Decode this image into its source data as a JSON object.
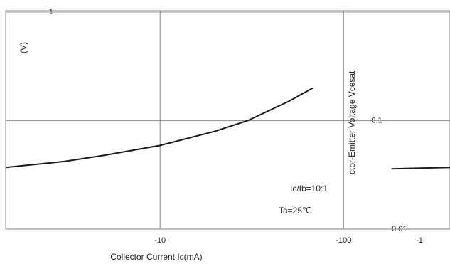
{
  "chart_data": {
    "type": "line",
    "x_label": "Collector Current  Ic(mA)",
    "y_label": "ctor-Emitter Voltage  Vcesat",
    "y_unit": "(V)",
    "annotations": [
      "Ic/Ib=10:1",
      "Ta=25℃"
    ],
    "corner_label": "-1",
    "x": [
      1.44,
      3,
      5,
      10,
      20,
      30,
      50,
      68,
      null,
      182,
      380
    ],
    "series": [
      {
        "name": "Vcesat",
        "color": "#1a1a1a",
        "values": [
          0.037,
          0.042,
          0.048,
          0.059,
          0.08,
          0.1,
          0.15,
          0.2,
          null,
          0.036,
          0.037
        ]
      }
    ],
    "xlog": true,
    "ylog": true,
    "xlim": [
      1.44,
      380
    ],
    "ylim": [
      0.01,
      1.03
    ],
    "xticks": [
      {
        "value": 10,
        "label": "-10"
      },
      {
        "value": 100,
        "label": "-100"
      }
    ],
    "yticks": [
      {
        "value": 0.01,
        "label": "-0.01"
      },
      {
        "value": 0.1,
        "label": "0.1"
      },
      {
        "value": 1,
        "label": "-1"
      }
    ],
    "grid": true
  }
}
